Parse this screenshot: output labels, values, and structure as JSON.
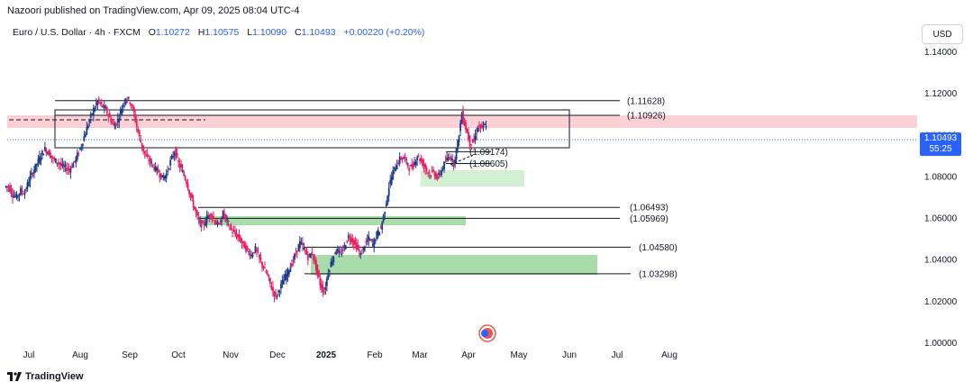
{
  "header": {
    "publisher": "Nazoori published on TradingView.com, Apr 09, 2025 08:04 UTC-4",
    "symbol": "Euro / U.S. Dollar · 4h · FXCM",
    "ohlc": {
      "o_label": "O",
      "o": "1.10272",
      "h_label": "H",
      "h": "1.10575",
      "l_label": "L",
      "l": "1.10090",
      "c_label": "C",
      "c": "1.10493",
      "change": "+0.00220 (+0.20%)"
    }
  },
  "currency_button": "USD",
  "price_tag": {
    "price": "1.10493",
    "countdown": "55:25"
  },
  "footer": {
    "brand": "TradingView"
  },
  "colors": {
    "up": "#26a69a",
    "down": "#ef5350",
    "candle_body_down": "#e91e63",
    "candle_body_up": "#1e3a8a",
    "accent": "#2962ff",
    "resistance_zone": "#fbd1d6",
    "support_zone": "#a8dca9"
  },
  "chart_data": {
    "type": "candlestick",
    "title": "Euro / U.S. Dollar · 4h · FXCM",
    "ylim": [
      1.0,
      1.15
    ],
    "y_ticks": [
      "1.14000",
      "1.12000",
      "1.10000",
      "1.08000",
      "1.06000",
      "1.04000",
      "1.02000",
      "1.00000"
    ],
    "x_ticks": [
      "Jul",
      "Aug",
      "Sep",
      "Oct",
      "Nov",
      "Dec",
      "2025",
      "Feb",
      "Mar",
      "Apr",
      "May",
      "Jun",
      "Jul",
      "Aug"
    ],
    "level_labels": [
      "(1.11628)",
      "(1.10926)",
      "(1.09174)",
      "(1.08605)",
      "(1.06493)",
      "(1.05969)",
      "(1.04580)",
      "(1.03298)"
    ],
    "levels": [
      1.11628,
      1.10926,
      1.09174,
      1.08605,
      1.06493,
      1.05969,
      1.0458,
      1.03298
    ],
    "last_price": 1.10493,
    "series": [
      {
        "values": [
          1.075,
          1.071,
          1.07,
          1.073,
          1.072,
          1.078,
          1.082,
          1.086,
          1.09,
          1.093,
          1.091,
          1.088,
          1.087,
          1.085,
          1.084,
          1.083,
          1.086,
          1.09,
          1.095,
          1.101,
          1.107,
          1.112,
          1.116,
          1.114,
          1.112,
          1.108,
          1.104,
          1.107,
          1.113,
          1.118,
          1.116,
          1.11,
          1.101,
          1.094,
          1.089,
          1.087,
          1.084,
          1.082,
          1.079,
          1.081,
          1.087,
          1.092,
          1.086,
          1.082,
          1.077,
          1.07,
          1.064,
          1.058,
          1.056,
          1.06,
          1.062,
          1.058,
          1.056,
          1.062,
          1.058,
          1.054,
          1.052,
          1.05,
          1.047,
          1.044,
          1.042,
          1.045,
          1.04,
          1.036,
          1.032,
          1.026,
          1.022,
          1.026,
          1.03,
          1.034,
          1.038,
          1.043,
          1.048,
          1.045,
          1.041,
          1.043,
          1.036,
          1.028,
          1.024,
          1.034,
          1.04,
          1.045,
          1.042,
          1.046,
          1.051,
          1.049,
          1.046,
          1.042,
          1.047,
          1.05,
          1.047,
          1.052,
          1.055,
          1.064,
          1.075,
          1.082,
          1.086,
          1.089,
          1.088,
          1.084,
          1.085,
          1.09,
          1.087,
          1.084,
          1.081,
          1.082,
          1.079,
          1.083,
          1.087,
          1.09,
          1.086,
          1.096,
          1.11,
          1.103,
          1.096,
          1.097,
          1.104,
          1.103,
          1.105
        ]
      }
    ]
  }
}
